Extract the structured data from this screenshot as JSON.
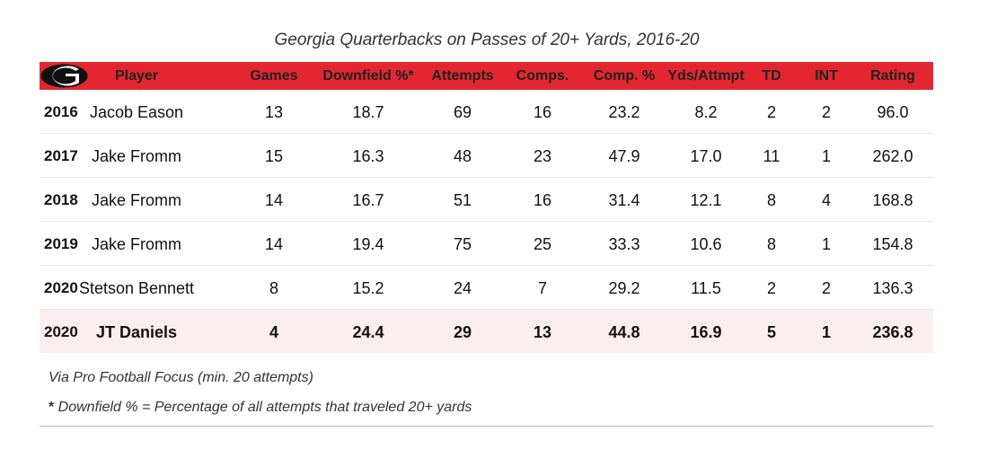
{
  "chart_data": {
    "type": "table",
    "title": "Georgia Quarterbacks on Passes of 20+ Yards, 2016-20",
    "columns": [
      "",
      "Player",
      "Games",
      "Downfield %*",
      "Attempts",
      "Comps.",
      "Comp. %",
      "Yds/Attmpt",
      "TD",
      "INT",
      "Rating"
    ],
    "rows": [
      [
        "2016",
        "Jacob Eason",
        "13",
        "18.7",
        "69",
        "16",
        "23.2",
        "8.2",
        "2",
        "2",
        "96.0"
      ],
      [
        "2017",
        "Jake Fromm",
        "15",
        "16.3",
        "48",
        "23",
        "47.9",
        "17.0",
        "11",
        "1",
        "262.0"
      ],
      [
        "2018",
        "Jake Fromm",
        "14",
        "16.7",
        "51",
        "16",
        "31.4",
        "12.1",
        "8",
        "4",
        "168.8"
      ],
      [
        "2019",
        "Jake Fromm",
        "14",
        "19.4",
        "75",
        "25",
        "33.3",
        "10.6",
        "8",
        "1",
        "154.8"
      ],
      [
        "2020",
        "Stetson Bennett",
        "8",
        "15.2",
        "24",
        "7",
        "29.2",
        "11.5",
        "2",
        "2",
        "136.3"
      ],
      [
        "2020",
        "JT Daniels",
        "4",
        "24.4",
        "29",
        "13",
        "44.8",
        "16.9",
        "5",
        "1",
        "236.8"
      ]
    ],
    "highlight_row": 5,
    "header_color": "#e3262f",
    "highlight_color": "#fbeeee"
  },
  "logo": "georgia-g-logo",
  "footnotes": {
    "source": "Via Pro Football Focus (min. 20 attempts)",
    "star": "* ",
    "definition": "Downfield % = Percentage of all attempts that traveled 20+ yards"
  }
}
